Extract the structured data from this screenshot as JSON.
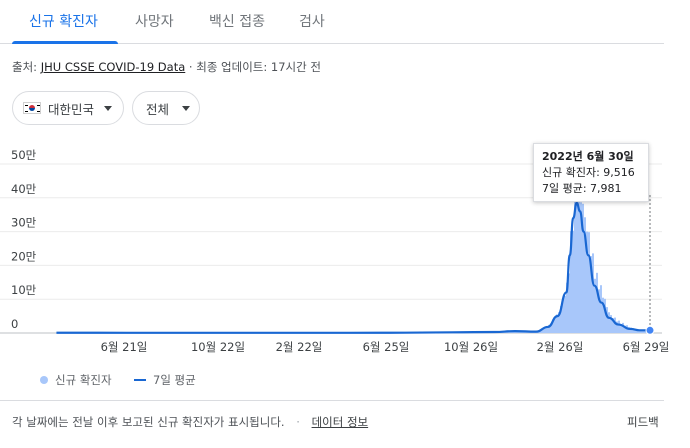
{
  "tabs": [
    {
      "label": "신규 확진자",
      "active": true
    },
    {
      "label": "사망자",
      "active": false
    },
    {
      "label": "백신 접종",
      "active": false
    },
    {
      "label": "검사",
      "active": false
    }
  ],
  "source": {
    "prefix": "출처: ",
    "link": "JHU CSSE COVID-19 Data",
    "separator": " · ",
    "updated": "최종 업데이트: 17시간 전"
  },
  "filters": {
    "country": {
      "label": "대한민국",
      "icon": "south-korea-flag-icon"
    },
    "region": {
      "label": "전체"
    }
  },
  "tooltip": {
    "date": "2022년 6월 30일",
    "new_cases": "신규 확진자: 9,516",
    "avg_7day": "7일 평균: 7,981"
  },
  "legend": {
    "cases": "신규 확진자",
    "average": "7일 평균"
  },
  "footer": {
    "note": "각 날짜에는 전날 이후 보고된 신규 확진자가 표시됩니다.",
    "separator": "·",
    "data_info": "데이터 정보",
    "feedback": "피드백"
  },
  "colors": {
    "accent": "#1a73e8",
    "line": "#1967d2",
    "bars": "#a8c7fa"
  },
  "chart_data": {
    "type": "area",
    "y_ticks": [
      "0",
      "10만",
      "20만",
      "30만",
      "40만",
      "50만"
    ],
    "ylim": [
      0,
      500000
    ],
    "x_tick_labels": [
      "6월 21일",
      "10월 22일",
      "2월 22일",
      "6월 25일",
      "10월 26일",
      "2월 26일",
      "6월 29일"
    ],
    "grid": true,
    "series": [
      {
        "name": "신규 확진자",
        "kind": "bars"
      },
      {
        "name": "7일 평균",
        "kind": "line"
      }
    ],
    "dates": [
      "2020-02",
      "2020-06",
      "2020-10",
      "2021-02",
      "2021-06",
      "2021-09",
      "2021-11",
      "2021-12",
      "2022-01",
      "2022-02-01",
      "2022-02-15",
      "2022-02-28",
      "2022-03-05",
      "2022-03-10",
      "2022-03-15",
      "2022-03-20",
      "2022-03-25",
      "2022-04-01",
      "2022-04-10",
      "2022-04-20",
      "2022-05-01",
      "2022-05-15",
      "2022-06-01",
      "2022-06-15",
      "2022-06-30"
    ],
    "new_cases": [
      1000,
      500,
      500,
      500,
      800,
      2500,
      3500,
      6000,
      4000,
      22000,
      60000,
      140000,
      260000,
      380000,
      420000,
      390000,
      330000,
      260000,
      160000,
      110000,
      50000,
      30000,
      15000,
      9000,
      9516
    ],
    "avg_7day": [
      800,
      500,
      500,
      500,
      700,
      2000,
      3000,
      5500,
      4000,
      18000,
      50000,
      120000,
      230000,
      340000,
      385000,
      360000,
      300000,
      230000,
      140000,
      90000,
      45000,
      25000,
      12000,
      8000,
      7981
    ]
  }
}
